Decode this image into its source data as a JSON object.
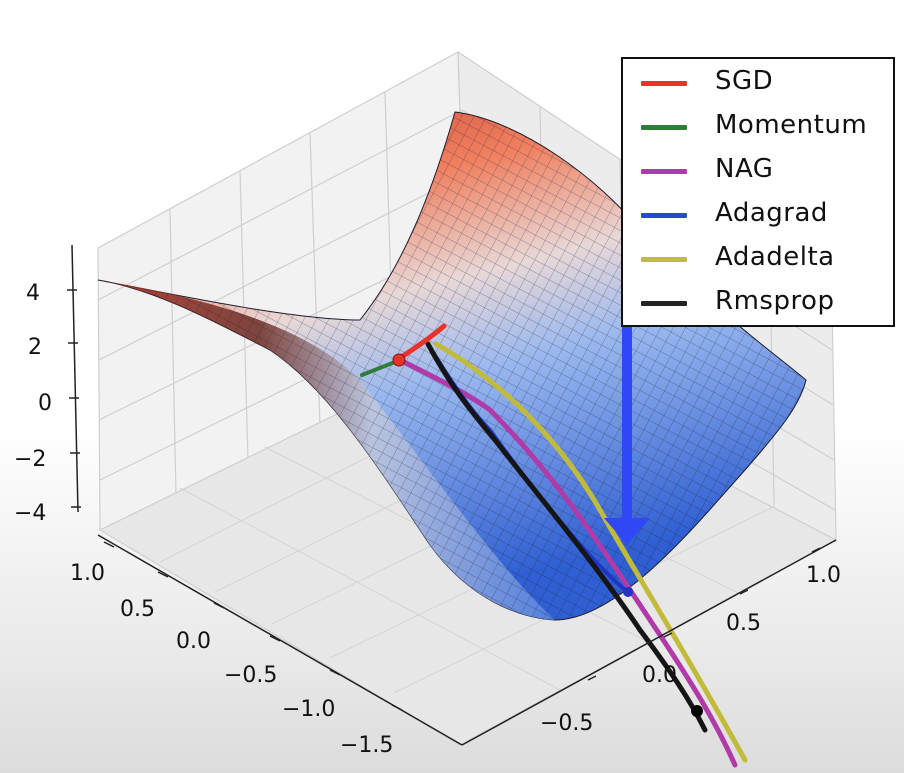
{
  "chart_data": {
    "type": "surface-3d",
    "surface": "saddle",
    "z_ticks": [
      "4",
      "2",
      "0",
      "−2",
      "−4"
    ],
    "y_ticks": [
      "1.0",
      "0.5",
      "0.0",
      "−0.5",
      "−1.0",
      "−1.5"
    ],
    "x_ticks": [
      "1.0",
      "0.5",
      "0.0",
      "−0.5"
    ],
    "legend_position": "top-right",
    "series": [
      {
        "name": "SGD",
        "color": "#e8322a"
      },
      {
        "name": "Momentum",
        "color": "#2e7d3a"
      },
      {
        "name": "NAG",
        "color": "#b03aa7"
      },
      {
        "name": "Adagrad",
        "color": "#2448d8"
      },
      {
        "name": "Adadelta",
        "color": "#c2bb3a"
      },
      {
        "name": "Rmsprop",
        "color": "#222222"
      }
    ],
    "annotation": {
      "type": "arrow",
      "direction": "down",
      "color": "#2f47f5"
    }
  }
}
